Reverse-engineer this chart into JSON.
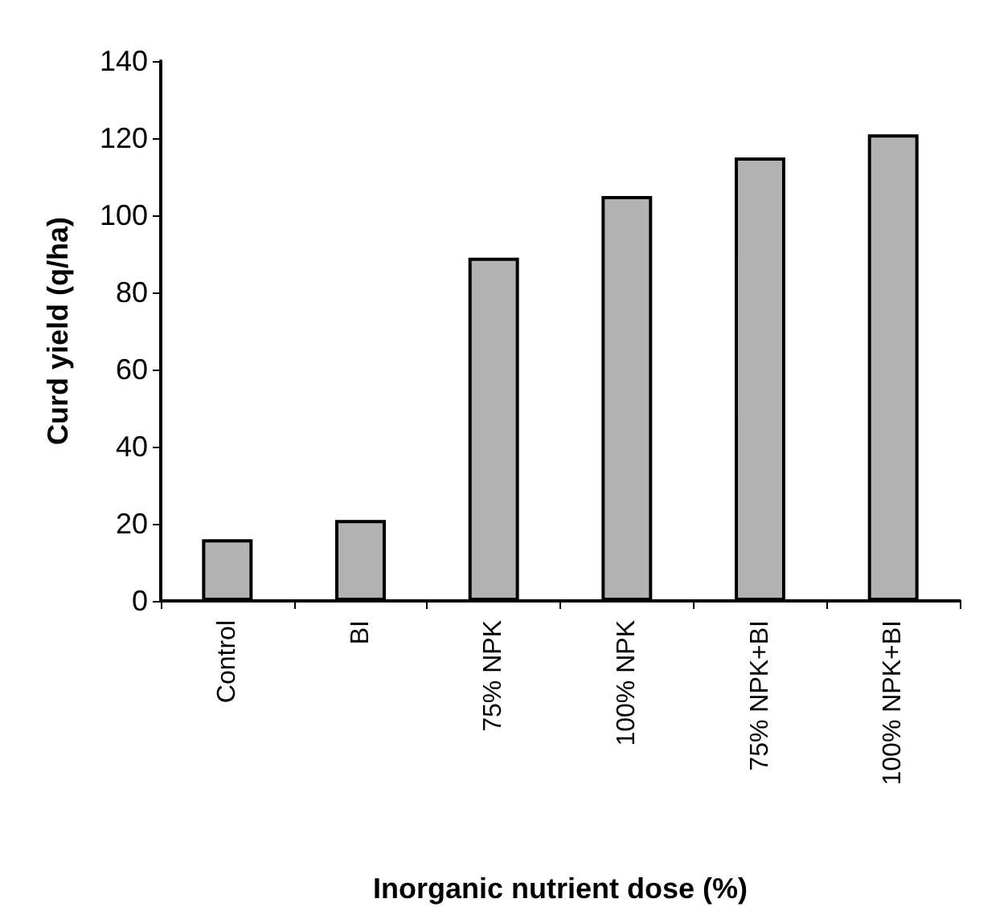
{
  "chart_data": {
    "type": "bar",
    "xlabel": "Inorganic nutrient dose (%)",
    "ylabel": "Curd yield (q/ha)",
    "categories": [
      "Control",
      "BI",
      "75% NPK",
      "100% NPK",
      "75% NPK+BI",
      "100% NPK+BI"
    ],
    "values": [
      16,
      21,
      89,
      105,
      115,
      121
    ],
    "color": "#b3b3b3",
    "ylim": [
      0,
      140
    ],
    "yticks": [
      0,
      20,
      40,
      60,
      80,
      100,
      120,
      140
    ],
    "grid": false
  }
}
